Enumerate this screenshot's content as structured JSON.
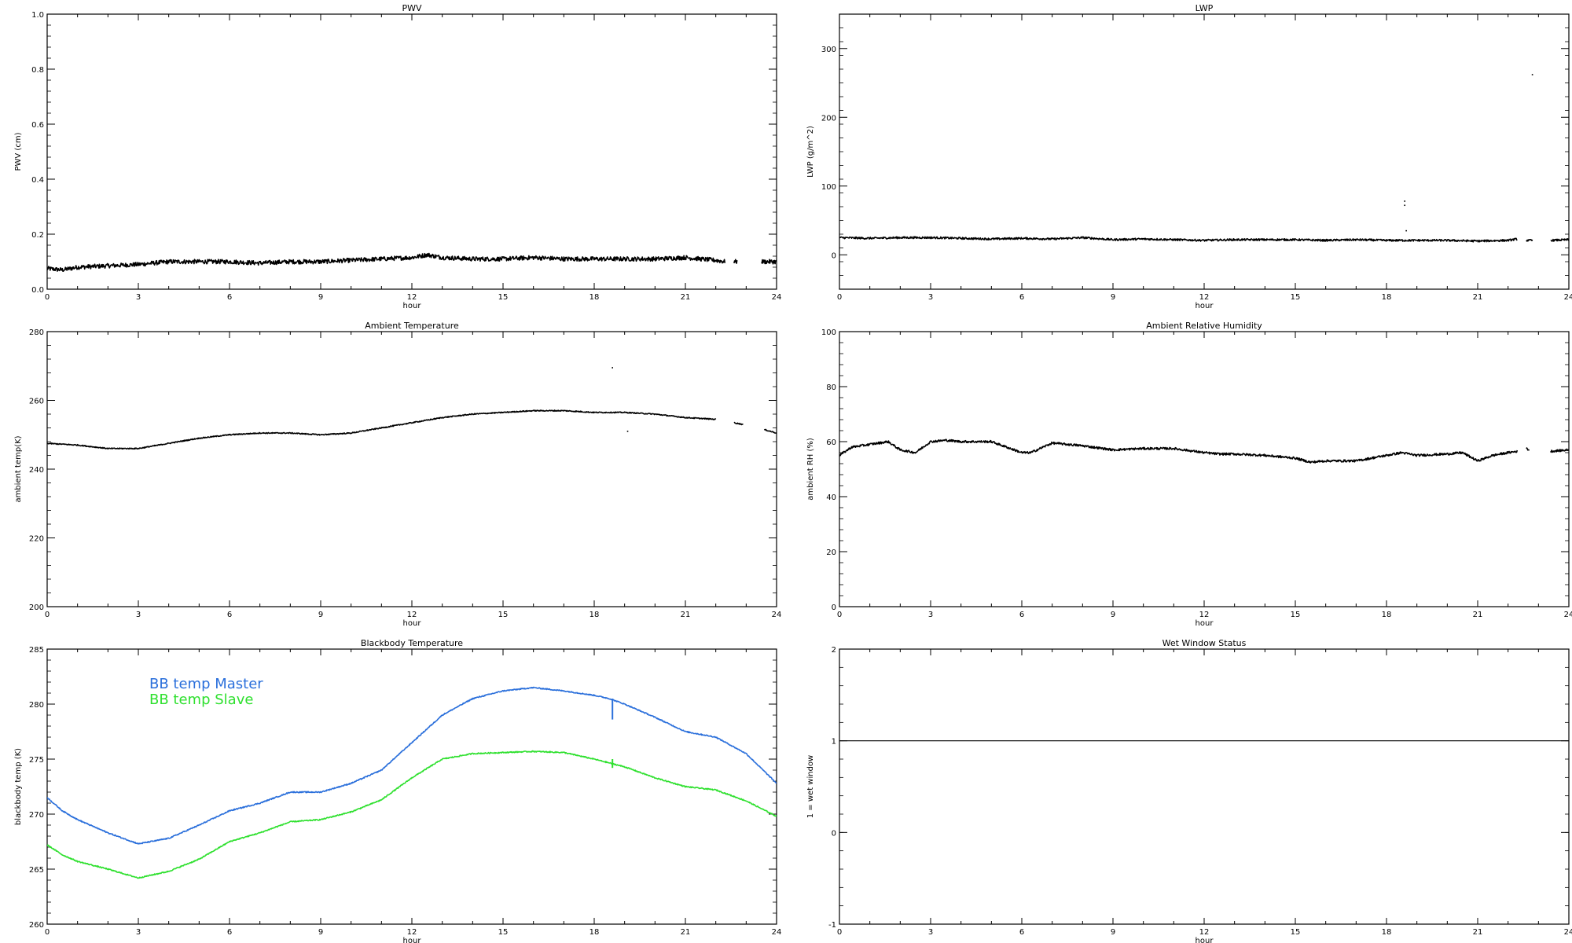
{
  "chart_data": [
    {
      "id": "pwv",
      "type": "line",
      "title": "PWV",
      "xlabel": "hour",
      "ylabel": "PWV (cm)",
      "xlim": [
        0,
        24
      ],
      "ylim": [
        0,
        1.0
      ],
      "xticks": [
        0,
        3,
        6,
        9,
        12,
        15,
        18,
        21,
        24
      ],
      "yticks": [
        0.0,
        0.2,
        0.4,
        0.6,
        0.8,
        1.0
      ],
      "ytick_labels": [
        "0.0",
        "0.2",
        "0.4",
        "0.6",
        "0.8",
        "1.0"
      ],
      "series": [
        {
          "color": "#000000",
          "noise": 0.008,
          "x": [
            0,
            0.5,
            1,
            2,
            3,
            4,
            5,
            6,
            7,
            8,
            9,
            10,
            11,
            12,
            12.5,
            13,
            14,
            15,
            16,
            17,
            18,
            19,
            20,
            21,
            22,
            22.3,
            null,
            22.6,
            22.7,
            null,
            23.5,
            24
          ],
          "y": [
            0.075,
            0.07,
            0.08,
            0.085,
            0.09,
            0.1,
            0.1,
            0.1,
            0.095,
            0.1,
            0.1,
            0.105,
            0.11,
            0.115,
            0.125,
            0.115,
            0.11,
            0.11,
            0.115,
            0.11,
            0.11,
            0.11,
            0.11,
            0.115,
            0.105,
            0.1,
            null,
            0.1,
            0.1,
            null,
            0.1,
            0.1
          ]
        }
      ]
    },
    {
      "id": "lwp",
      "type": "line",
      "title": "LWP",
      "xlabel": "hour",
      "ylabel": "LWP (g/m^2)",
      "xlim": [
        0,
        24
      ],
      "ylim": [
        -50,
        350
      ],
      "xticks": [
        0,
        3,
        6,
        9,
        12,
        15,
        18,
        21,
        24
      ],
      "yticks": [
        0,
        100,
        200,
        300
      ],
      "ytick_labels": [
        "0",
        "100",
        "200",
        "300"
      ],
      "series": [
        {
          "color": "#000000",
          "noise": 1.4,
          "x": [
            0,
            1,
            2,
            3,
            4,
            5,
            6,
            7,
            8,
            9,
            10,
            11,
            12,
            13,
            14,
            15,
            16,
            17,
            18,
            19,
            20,
            21,
            22,
            22.3,
            null,
            22.6,
            22.8,
            null,
            23.4,
            24
          ],
          "y": [
            25,
            24,
            25,
            25,
            24,
            23,
            24,
            23,
            25,
            22,
            23,
            22,
            21,
            22,
            22,
            22,
            21,
            22,
            21,
            21,
            21,
            20,
            21,
            23,
            null,
            21,
            21,
            null,
            21,
            22
          ]
        }
      ],
      "outliers": [
        [
          18.6,
          72
        ],
        [
          18.6,
          78
        ],
        [
          18.65,
          35
        ],
        [
          22.8,
          262
        ]
      ]
    },
    {
      "id": "tamb",
      "type": "line",
      "title": "Ambient Temperature",
      "xlabel": "hour",
      "ylabel": "ambient temp(K)",
      "xlim": [
        0,
        24
      ],
      "ylim": [
        200,
        280
      ],
      "xticks": [
        0,
        3,
        6,
        9,
        12,
        15,
        18,
        21,
        24
      ],
      "yticks": [
        200,
        220,
        240,
        260,
        280
      ],
      "ytick_labels": [
        "200",
        "220",
        "240",
        "260",
        "280"
      ],
      "series": [
        {
          "color": "#000000",
          "noise": 0.15,
          "x": [
            0,
            1,
            2,
            3,
            4,
            5,
            6,
            7,
            8,
            9,
            10,
            11,
            12,
            13,
            14,
            15,
            16,
            17,
            18,
            19,
            20,
            21,
            22,
            null,
            22.6,
            22.9,
            null,
            23.6,
            24
          ],
          "y": [
            247.5,
            247,
            246,
            246,
            247.5,
            249,
            250,
            250.5,
            250.5,
            250,
            250.5,
            252,
            253.5,
            255,
            256,
            256.5,
            257,
            257,
            256.5,
            256.5,
            256,
            255,
            254.5,
            null,
            253.5,
            253,
            null,
            251.5,
            250.5
          ]
        }
      ],
      "outliers": [
        [
          18.6,
          269.5
        ],
        [
          19.1,
          251
        ]
      ]
    },
    {
      "id": "rh",
      "type": "line",
      "title": "Ambient Relative Humidity",
      "xlabel": "hour",
      "ylabel": "ambient RH (%)",
      "xlim": [
        0,
        24
      ],
      "ylim": [
        0,
        100
      ],
      "xticks": [
        0,
        3,
        6,
        9,
        12,
        15,
        18,
        21,
        24
      ],
      "yticks": [
        0,
        20,
        40,
        60,
        80,
        100
      ],
      "ytick_labels": [
        "0",
        "20",
        "40",
        "60",
        "80",
        "100"
      ],
      "series": [
        {
          "color": "#000000",
          "noise": 0.4,
          "x": [
            0,
            0.4,
            1,
            1.6,
            2,
            2.5,
            3,
            3.5,
            4,
            5,
            5.5,
            6,
            6.3,
            7,
            8,
            9,
            10,
            11,
            12,
            12.5,
            13,
            14,
            15,
            15.5,
            16,
            17,
            18,
            18.5,
            19,
            20,
            20.5,
            21,
            21.5,
            22,
            22.3,
            null,
            22.6,
            22.7,
            null,
            23.4,
            24
          ],
          "y": [
            55,
            58,
            59,
            60,
            57,
            56,
            60,
            60.5,
            60,
            60,
            58,
            56,
            56,
            59.5,
            58.5,
            57,
            57.5,
            57.5,
            56,
            55.5,
            55.5,
            55,
            54,
            52.5,
            53,
            53,
            55,
            56,
            55,
            55.5,
            56,
            53,
            55,
            56,
            56.5,
            null,
            57.5,
            57,
            null,
            56.5,
            57
          ]
        }
      ]
    },
    {
      "id": "bbtemp",
      "type": "line",
      "title": "Blackbody Temperature",
      "xlabel": "hour",
      "ylabel": "blackbody temp (K)",
      "xlim": [
        0,
        24
      ],
      "ylim": [
        260,
        285
      ],
      "xticks": [
        0,
        3,
        6,
        9,
        12,
        15,
        18,
        21,
        24
      ],
      "yticks": [
        260,
        265,
        270,
        275,
        280,
        285
      ],
      "ytick_labels": [
        "260",
        "265",
        "270",
        "275",
        "280",
        "285"
      ],
      "legend": [
        "BB temp Master",
        "BB temp Slave"
      ],
      "series": [
        {
          "name": "BB temp Master",
          "color": "#2a6fdb",
          "noise": 0.05,
          "x": [
            0,
            0.5,
            1,
            2,
            3,
            4,
            5,
            6,
            7,
            8,
            9,
            10,
            11,
            12,
            13,
            14,
            15,
            16,
            17,
            18,
            18.5,
            19,
            20,
            21,
            22,
            23,
            24
          ],
          "y": [
            271.5,
            270.3,
            269.5,
            268.3,
            267.3,
            267.8,
            269,
            270.3,
            271,
            272,
            272,
            272.8,
            274,
            276.5,
            279,
            280.5,
            281.2,
            281.5,
            281.2,
            280.8,
            280.5,
            280,
            278.8,
            277.5,
            277,
            275.5,
            272.8
          ]
        },
        {
          "name": "BB temp Slave",
          "color": "#2ee02e",
          "noise": 0.05,
          "x": [
            0,
            0.5,
            1,
            2,
            3,
            4,
            5,
            6,
            7,
            8,
            9,
            10,
            11,
            12,
            13,
            14,
            15,
            16,
            17,
            18,
            19,
            20,
            21,
            22,
            23,
            24
          ],
          "y": [
            267.2,
            266.3,
            265.7,
            265,
            264.2,
            264.8,
            265.9,
            267.5,
            268.3,
            269.3,
            269.5,
            270.2,
            271.3,
            273.3,
            275,
            275.5,
            275.6,
            275.7,
            275.6,
            275,
            274.3,
            273.3,
            272.5,
            272.2,
            271.2,
            269.8
          ]
        }
      ],
      "spikes": [
        {
          "series": 0,
          "x": 18.6,
          "y1": 280.5,
          "y2": 278.6
        },
        {
          "series": 1,
          "x": 18.6,
          "y1": 275,
          "y2": 274.2
        }
      ]
    },
    {
      "id": "wetwin",
      "type": "line",
      "title": "Wet Window Status",
      "xlabel": "hour",
      "ylabel": "1 = wet window",
      "xlim": [
        0,
        24
      ],
      "ylim": [
        -1,
        2
      ],
      "xticks": [
        0,
        3,
        6,
        9,
        12,
        15,
        18,
        21,
        24
      ],
      "yticks": [
        -1,
        0,
        1,
        2
      ],
      "ytick_labels": [
        "-1",
        "0",
        "1",
        "2"
      ],
      "series": [
        {
          "color": "#000000",
          "noise": 0,
          "x": [
            0,
            24
          ],
          "y": [
            1,
            1
          ]
        }
      ]
    }
  ]
}
